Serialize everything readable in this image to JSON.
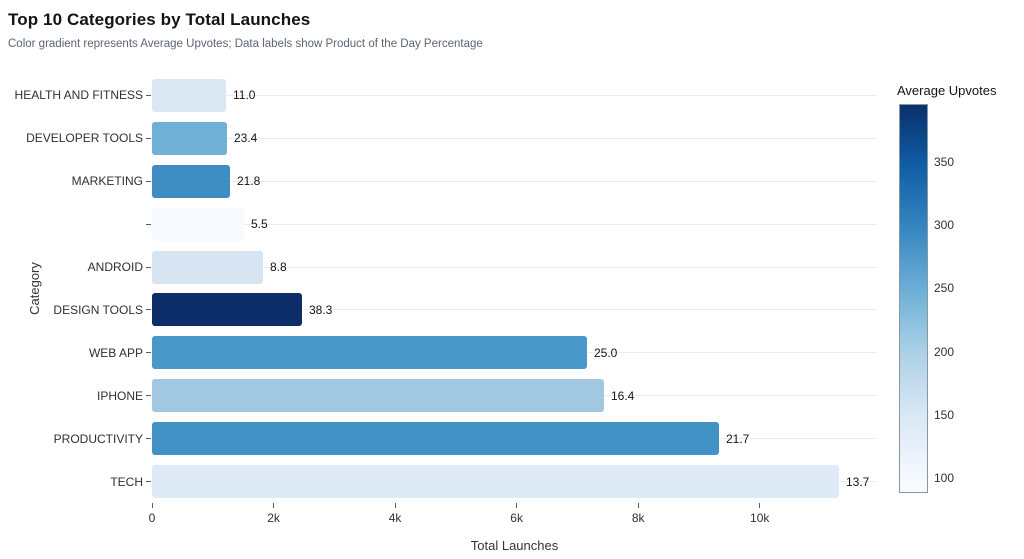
{
  "chart_data": {
    "type": "bar",
    "orientation": "horizontal",
    "title": "Top 10 Categories by Total Launches",
    "subtitle": "Color gradient represents Average Upvotes; Data labels show Product of the Day Percentage",
    "xlabel": "Total Launches",
    "ylabel": "Category",
    "xlim": [
      0,
      11930
    ],
    "grid": "horizontal-category-lines",
    "legend_position": "right-colorbar",
    "categories": [
      "HEALTH AND FITNESS",
      "DEVELOPER TOOLS",
      "MARKETING",
      "",
      "ANDROID",
      "DESIGN TOOLS",
      "WEB APP",
      "IPHONE",
      "PRODUCTIVITY",
      "TECH"
    ],
    "series": [
      {
        "name": "Total Launches",
        "values": [
          1225,
          1235,
          1280,
          1510,
          1830,
          2465,
          7150,
          7430,
          9330,
          11300
        ]
      }
    ],
    "data_labels_product_of_day_pct": [
      "11.0",
      "23.4",
      "21.8",
      "5.5",
      "8.8",
      "38.3",
      "25.0",
      "16.4",
      "21.7",
      "13.7"
    ],
    "bar_colors": [
      "#dbe8f3",
      "#6fb0d7",
      "#3e8ec4",
      "#f7fbff",
      "#d7e5f2",
      "#0d2d69",
      "#4a97c9",
      "#a2c8e1",
      "#4392c6",
      "#deebf7"
    ],
    "x_ticks": [
      {
        "value": 0,
        "label": "0"
      },
      {
        "value": 2000,
        "label": "2k"
      },
      {
        "value": 4000,
        "label": "4k"
      },
      {
        "value": 6000,
        "label": "6k"
      },
      {
        "value": 8000,
        "label": "8k"
      },
      {
        "value": 10000,
        "label": "10k"
      }
    ],
    "colorbar": {
      "title": "Average Upvotes",
      "min": 88,
      "max": 396,
      "ticks": [
        350,
        300,
        250,
        200,
        150,
        100
      ],
      "gradient_stops_bottom_to_top": [
        {
          "pos": 0.0,
          "color": "#f7fbff"
        },
        {
          "pos": 0.039,
          "color": "#f4f9fe"
        },
        {
          "pos": 0.201,
          "color": "#d9e7f5"
        },
        {
          "pos": 0.364,
          "color": "#abd0e6"
        },
        {
          "pos": 0.526,
          "color": "#6aaed6"
        },
        {
          "pos": 0.688,
          "color": "#3484bf"
        },
        {
          "pos": 0.851,
          "color": "#105ba4"
        },
        {
          "pos": 1.0,
          "color": "#08306b"
        }
      ]
    }
  }
}
